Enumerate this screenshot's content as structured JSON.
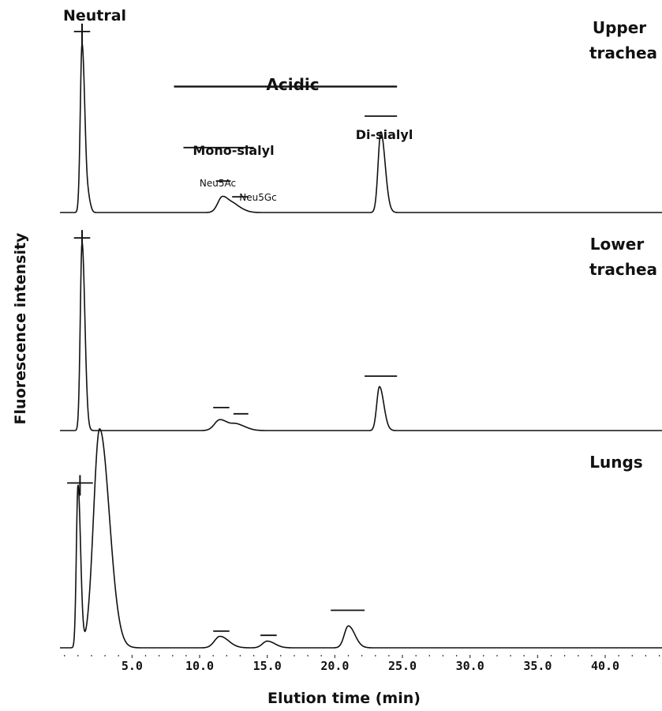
{
  "chart_data": {
    "type": "line",
    "xlabel": "Elution time (min)",
    "ylabel": "Fluorescence intensity",
    "xlim": [
      -0.8,
      44.2
    ],
    "x_ticks": [
      5.0,
      10.0,
      15.0,
      20.0,
      25.0,
      30.0,
      35.0,
      40.0
    ],
    "x_tick_labels": [
      "5.0",
      "10.0",
      "15.0",
      "20.0",
      "25.0",
      "30.0",
      "35.0",
      "40.0"
    ],
    "grid": false,
    "panels": [
      {
        "label": "Upper trachea",
        "label_lines": [
          "Upper",
          "trachea"
        ],
        "ylim": [
          0,
          1
        ],
        "baseline": 0,
        "peaks": [
          {
            "x": 1.3,
            "height": 0.86,
            "width": 0.13
          },
          {
            "x": 1.8,
            "height": 0.05,
            "width": 0.1
          },
          {
            "x": 11.7,
            "height": 0.082,
            "width": 0.35
          },
          {
            "x": 12.7,
            "height": 0.025,
            "width": 0.35
          },
          {
            "x": 23.4,
            "height": 0.41,
            "width": 0.2
          }
        ],
        "marks": [
          {
            "x1": 0.7,
            "x2": 1.9,
            "y": 0.92,
            "vertical": true
          },
          {
            "x1": 11.2,
            "x2": 12.3,
            "y": 0.16
          },
          {
            "x1": 12.4,
            "x2": 13.6,
            "y": 0.08
          },
          {
            "x1": 22.2,
            "x2": 24.6,
            "y": 0.49
          },
          {
            "x1": 8.8,
            "x2": 14.0,
            "y": 0.33
          },
          {
            "x1": 8.1,
            "x2": 24.6,
            "y": 0.64
          }
        ],
        "annotations": [
          "Neutral",
          "Acidic",
          "Mono-sialyl",
          "Di-sialyl",
          "Neu5Ac",
          "Neu5Gc"
        ]
      },
      {
        "label": "Lower trachea",
        "label_lines": [
          "Lower",
          "trachea"
        ],
        "ylim": [
          0,
          1
        ],
        "baseline": 0,
        "peaks": [
          {
            "x": 1.3,
            "height": 0.9,
            "width": 0.13
          },
          {
            "x": 11.5,
            "height": 0.052,
            "width": 0.4
          },
          {
            "x": 12.8,
            "height": 0.026,
            "width": 0.4
          },
          {
            "x": 23.3,
            "height": 0.21,
            "width": 0.2
          }
        ],
        "marks": [
          {
            "x1": 0.7,
            "x2": 1.9,
            "y": 0.92,
            "vertical": true
          },
          {
            "x1": 11.0,
            "x2": 12.2,
            "y": 0.11
          },
          {
            "x1": 12.5,
            "x2": 13.6,
            "y": 0.08
          },
          {
            "x1": 22.2,
            "x2": 24.6,
            "y": 0.26
          }
        ]
      },
      {
        "label": "Lungs",
        "ylim": [
          0,
          1
        ],
        "baseline": 0,
        "peaks": [
          {
            "x": 1.0,
            "height": 0.78,
            "width": 0.12
          },
          {
            "x": 2.6,
            "height": 1.05,
            "width": 0.45
          },
          {
            "x": 11.5,
            "height": 0.055,
            "width": 0.4
          },
          {
            "x": 15.0,
            "height": 0.032,
            "width": 0.35
          },
          {
            "x": 21.0,
            "height": 0.105,
            "width": 0.3
          }
        ],
        "marks": [
          {
            "x1": 0.2,
            "x2": 2.1,
            "y": 0.79,
            "vertical": true
          },
          {
            "x1": 11.0,
            "x2": 12.2,
            "y": 0.08
          },
          {
            "x1": 14.5,
            "x2": 15.7,
            "y": 0.06
          },
          {
            "x1": 19.7,
            "x2": 22.2,
            "y": 0.18
          }
        ]
      }
    ]
  }
}
